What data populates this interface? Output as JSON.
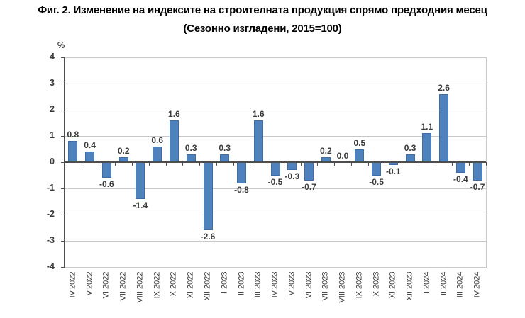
{
  "title": "Фиг. 2. Изменение на индексите на строителната продукция спрямо предходния месец",
  "subtitle": "(Сезонно изгладени, 2015=100)",
  "chart_data": {
    "type": "bar",
    "title": "Изменение на индексите на строителната продукция спрямо предходния месец",
    "subtitle": "Сезонно изгладени, 2015=100",
    "categories": [
      "IV.2022",
      "V.2022",
      "VI.2022",
      "VII.2022",
      "VIII.2022",
      "IX.2022",
      "X.2022",
      "XI.2022",
      "XII.2022",
      "I.2023",
      "II.2023",
      "III.2023",
      "IV.2023",
      "V.2023",
      "VI.2023",
      "VII.2023",
      "VIII.2023",
      "IX.2023",
      "X.2023",
      "XI.2023",
      "XII.2023",
      "I.2024",
      "II.2024",
      "III.2024",
      "IV.2024"
    ],
    "values": [
      0.8,
      0.4,
      -0.6,
      0.2,
      -1.4,
      0.6,
      1.6,
      0.3,
      -2.6,
      0.3,
      -0.8,
      1.6,
      -0.5,
      -0.3,
      -0.7,
      0.2,
      0.0,
      0.5,
      -0.5,
      -0.1,
      0.3,
      1.1,
      2.6,
      -0.4,
      -0.7
    ],
    "xlabel": "",
    "ylabel": "%",
    "ylim": [
      -4,
      4
    ],
    "yticks": [
      4,
      3,
      2,
      1,
      0,
      -1,
      -2,
      -3,
      -4
    ],
    "grid": true,
    "legend": "none",
    "data_labels": true,
    "colors": {
      "bar": "#4f81bd",
      "bar_edge": "#3e6ca5",
      "grid": "#c8c8c8",
      "axis": "#4d4d4d",
      "text": "#3a3a3a",
      "title": "#000000"
    }
  }
}
